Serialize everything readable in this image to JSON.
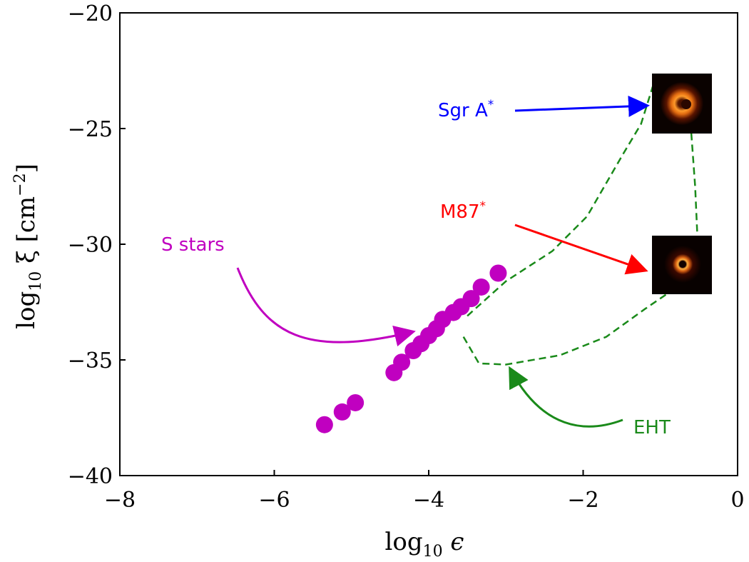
{
  "chart_data": {
    "type": "scatter",
    "xlabel_parts": {
      "base": "log",
      "sub": "10",
      "var": " ϵ"
    },
    "ylabel_parts": {
      "base": "log",
      "sub": "10",
      "var": " ξ [cm",
      "sup": "−2",
      "end": "]"
    },
    "xlim": [
      -8,
      0
    ],
    "ylim": [
      -40,
      -20
    ],
    "xticks": [
      -8,
      -6,
      -4,
      -2,
      0
    ],
    "xtick_labels": [
      "−8",
      "−6",
      "−4",
      "−2",
      "0"
    ],
    "yticks": [
      -40,
      -35,
      -30,
      -25,
      -20
    ],
    "ytick_labels": [
      "−40",
      "−35",
      "−30",
      "−25",
      "−20"
    ],
    "grid": false,
    "series": [
      {
        "name": "S stars",
        "color": "#c000c0",
        "points": [
          [
            -5.35,
            -37.8
          ],
          [
            -5.12,
            -37.25
          ],
          [
            -4.95,
            -36.85
          ],
          [
            -4.45,
            -35.55
          ],
          [
            -4.35,
            -35.1
          ],
          [
            -4.2,
            -34.6
          ],
          [
            -4.1,
            -34.3
          ],
          [
            -4.0,
            -33.95
          ],
          [
            -3.9,
            -33.65
          ],
          [
            -3.82,
            -33.25
          ],
          [
            -3.68,
            -32.95
          ],
          [
            -3.58,
            -32.7
          ],
          [
            -3.45,
            -32.35
          ],
          [
            -3.32,
            -31.85
          ],
          [
            -3.1,
            -31.25
          ]
        ]
      },
      {
        "name": "EHT",
        "color": "#1a8a1a",
        "style": "dashed",
        "points": [
          [
            -3.5,
            -33.1
          ],
          [
            -3.0,
            -31.6
          ],
          [
            -2.4,
            -30.3
          ],
          [
            -1.95,
            -28.8
          ],
          [
            -1.5,
            -26.2
          ],
          [
            -1.25,
            -24.8
          ],
          [
            -1.1,
            -23.2
          ],
          [
            -1.08,
            -23.1
          ]
        ]
      },
      {
        "name": "EHT-lower",
        "color": "#1a8a1a",
        "style": "dashed",
        "points": [
          [
            -3.55,
            -34.0
          ],
          [
            -3.35,
            -35.15
          ],
          [
            -3.0,
            -35.2
          ],
          [
            -2.3,
            -34.8
          ],
          [
            -1.7,
            -34.0
          ],
          [
            -1.2,
            -32.8
          ],
          [
            -0.85,
            -32.0
          ]
        ]
      },
      {
        "name": "EHT-right",
        "color": "#1a8a1a",
        "style": "dashed",
        "points": [
          [
            -0.6,
            -25.2
          ],
          [
            -0.55,
            -27.5
          ],
          [
            -0.52,
            -29.7
          ]
        ]
      }
    ],
    "annotations": [
      {
        "text": "Sgr A*",
        "label_main": "Sgr A",
        "label_sup": "*",
        "color": "#0000ff"
      },
      {
        "text": "M87*",
        "label_main": "M87",
        "label_sup": "*",
        "color": "#ff0000"
      },
      {
        "text": "S stars",
        "color": "#c000c0"
      },
      {
        "text": "EHT",
        "color": "#1a8a1a"
      }
    ]
  }
}
